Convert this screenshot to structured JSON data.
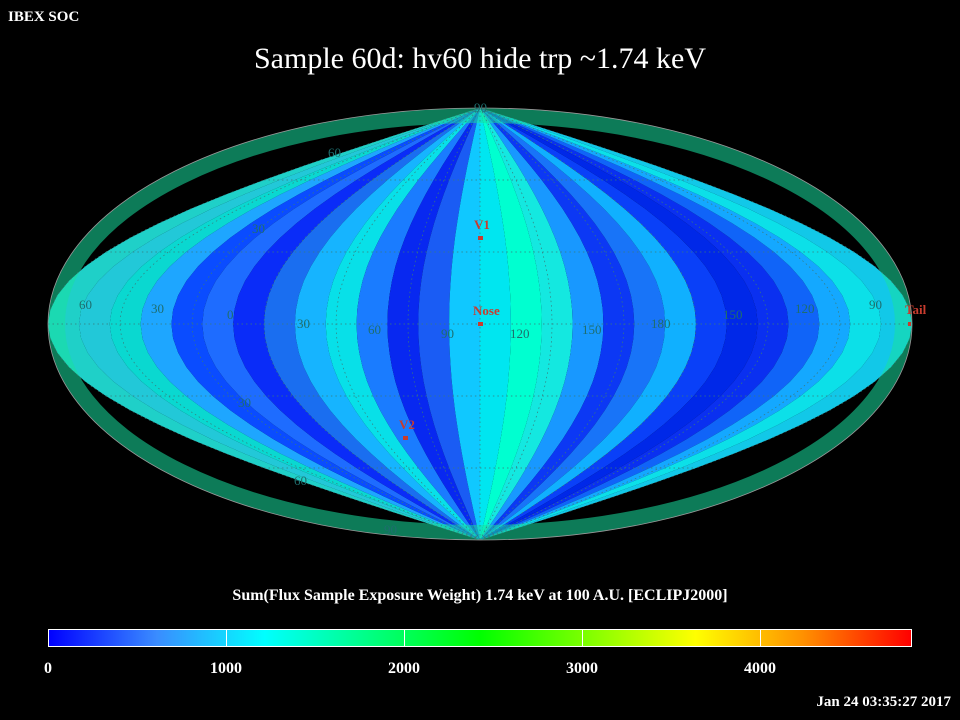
{
  "header": {
    "soc_label": "IBEX SOC",
    "title": "Sample 60d: hv60 hide trp ~1.74 keV"
  },
  "map": {
    "projection": "mollweide",
    "frame": "ECLIPJ2000",
    "graticule_labels": [
      {
        "text": "90",
        "kind": "lat"
      },
      {
        "text": "60",
        "kind": "lat"
      },
      {
        "text": "30",
        "kind": "lat"
      },
      {
        "text": "30",
        "kind": "lat"
      },
      {
        "text": "60",
        "kind": "lat"
      },
      {
        "text": "90",
        "kind": "lat"
      },
      {
        "text": "60",
        "kind": "lon"
      },
      {
        "text": "30",
        "kind": "lon"
      },
      {
        "text": "0",
        "kind": "lon"
      },
      {
        "text": "30",
        "kind": "lon"
      },
      {
        "text": "60",
        "kind": "lon"
      },
      {
        "text": "90",
        "kind": "lon"
      },
      {
        "text": "120",
        "kind": "lon"
      },
      {
        "text": "150",
        "kind": "lon"
      },
      {
        "text": "180",
        "kind": "lon"
      },
      {
        "text": "150",
        "kind": "lon"
      },
      {
        "text": "120",
        "kind": "lon"
      },
      {
        "text": "90",
        "kind": "lon"
      }
    ],
    "markers": [
      {
        "label": "V1"
      },
      {
        "label": "Nose"
      },
      {
        "label": "V2"
      },
      {
        "label": "Tail"
      }
    ],
    "marker_color": "#c83c2e",
    "graticule_label_color": "#1e6e6e"
  },
  "colorbar": {
    "title": "Sum(Flux Sample Exposure Weight)  1.74 keV at 100 A.U. [ECLIPJ2000]",
    "min": 0,
    "max": 4900,
    "tick_labels": [
      "0",
      "1000",
      "2000",
      "3000",
      "4000"
    ],
    "tick_values": [
      0,
      1000,
      2000,
      3000,
      4000
    ],
    "gradient_stops": [
      "#0000ff",
      "#3a8cff",
      "#00ffff",
      "#00ff80",
      "#00ff00",
      "#80ff00",
      "#ffff00",
      "#ff9000",
      "#ff0000"
    ]
  },
  "footer": {
    "timestamp": "Jan 24 03:35:27 2017"
  }
}
